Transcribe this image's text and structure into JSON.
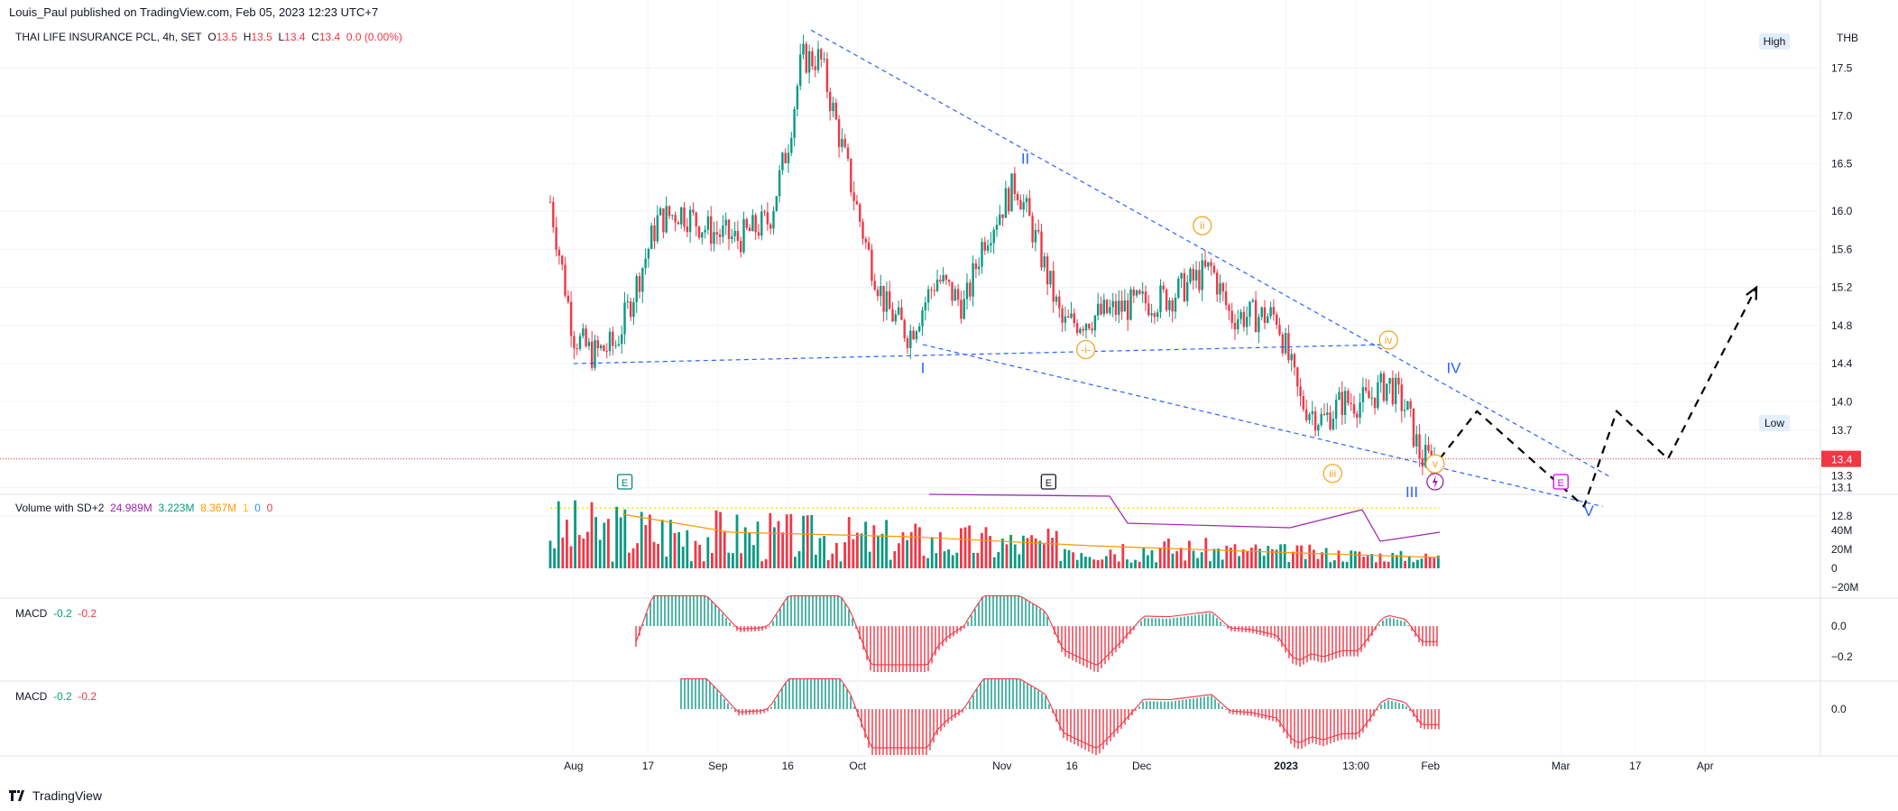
{
  "publisher": "Louis_Paul published on TradingView.com, Feb 05, 2023 12:23 UTC+7",
  "symbol": {
    "name": "THAI LIFE INSURANCE PCL, 4h, SET",
    "o_label": "O",
    "o": "13.5",
    "h_label": "H",
    "h": "13.5",
    "l_label": "L",
    "l": "13.4",
    "c_label": "C",
    "c": "13.4",
    "change": "0.0 (0.00%)"
  },
  "currency": "THB",
  "high_label": "High",
  "low_label": "Low",
  "last_price": "13.4",
  "low_price": "13.3",
  "footer_brand": "TradingView",
  "colors": {
    "up": "#089981",
    "down": "#f23645",
    "trend": "#2962ff",
    "wave": "#f5a623",
    "dashed": "#000000",
    "purple": "#9c27b0",
    "orange": "#ff9800"
  },
  "volume_pane": {
    "title": "Volume with SD+2",
    "v1": "24.989M",
    "v2": "3.223M",
    "v3": "8.367M",
    "v4": "1",
    "v5": "0",
    "v6": "0",
    "ticks": [
      "40M",
      "20M",
      "0",
      "−20M"
    ]
  },
  "macd1": {
    "title": "MACD",
    "v1": "-0.2",
    "v2": "-0.2",
    "ticks": [
      "0.0",
      "−0.2"
    ]
  },
  "macd2": {
    "title": "MACD",
    "v1": "-0.2",
    "v2": "-0.2",
    "ticks": [
      "0.0"
    ]
  },
  "chart_data": {
    "type": "candlestick",
    "title": "THAI LIFE INSURANCE PCL, 4h, SET",
    "y_axis": {
      "ticks": [
        17.5,
        17.0,
        16.5,
        16.0,
        15.6,
        15.2,
        14.8,
        14.4,
        14.0,
        13.7,
        13.4,
        13.1,
        12.8
      ],
      "range": [
        12.6,
        18.0
      ],
      "unit": "THB"
    },
    "x_axis": {
      "tick_labels": [
        "Aug",
        "17",
        "Sep",
        "16",
        "Oct",
        "Nov",
        "16",
        "Dec",
        "2023",
        "13:00",
        "Feb",
        "Mar",
        "17",
        "Apr"
      ]
    },
    "close_path": [
      [
        "2022-07-27",
        16.1
      ],
      [
        "2022-08-01",
        14.7
      ],
      [
        "2022-08-05",
        14.5
      ],
      [
        "2022-08-10",
        14.6
      ],
      [
        "2022-08-15",
        15.3
      ],
      [
        "2022-08-19",
        15.9
      ],
      [
        "2022-08-24",
        16.0
      ],
      [
        "2022-08-30",
        15.8
      ],
      [
        "2022-09-05",
        15.7
      ],
      [
        "2022-09-12",
        15.9
      ],
      [
        "2022-09-16",
        16.7
      ],
      [
        "2022-09-19",
        17.6
      ],
      [
        "2022-09-23",
        17.6
      ],
      [
        "2022-09-28",
        16.6
      ],
      [
        "2022-10-03",
        15.6
      ],
      [
        "2022-10-07",
        15.0
      ],
      [
        "2022-10-12",
        14.7
      ],
      [
        "2022-10-18",
        15.3
      ],
      [
        "2022-10-24",
        15.0
      ],
      [
        "2022-10-28",
        15.7
      ],
      [
        "2022-11-04",
        16.3
      ],
      [
        "2022-11-09",
        15.6
      ],
      [
        "2022-11-14",
        14.8
      ],
      [
        "2022-11-21",
        14.9
      ],
      [
        "2022-11-28",
        15.0
      ],
      [
        "2022-12-07",
        15.1
      ],
      [
        "2022-12-16",
        15.4
      ],
      [
        "2022-12-20",
        14.9
      ],
      [
        "2022-12-30",
        14.9
      ],
      [
        "2023-01-04",
        14.0
      ],
      [
        "2023-01-09",
        13.8
      ],
      [
        "2023-01-13",
        14.0
      ],
      [
        "2023-01-18",
        14.0
      ],
      [
        "2023-01-23",
        14.2
      ],
      [
        "2023-01-27",
        13.9
      ],
      [
        "2023-01-30",
        13.4
      ],
      [
        "2023-02-03",
        13.4
      ]
    ],
    "last_price": 13.4,
    "wave_labels": [
      {
        "label": "I",
        "date": "2022-10-15",
        "price": 14.3,
        "color": "blue"
      },
      {
        "label": "II",
        "date": "2022-11-06",
        "price": 16.5,
        "color": "blue"
      },
      {
        "label": "III",
        "date": "2023-01-28",
        "price": 13.0,
        "color": "blue"
      },
      {
        "label": "IV",
        "date": "2023-02-06",
        "price": 14.3,
        "color": "blue"
      },
      {
        "label": "V",
        "date": "2023-03-07",
        "price": 12.8,
        "color": "blue"
      },
      {
        "label": "ii",
        "date": "2022-12-14",
        "price": 15.8,
        "color": "orange"
      },
      {
        "label": "-i-",
        "date": "2022-11-19",
        "price": 14.5,
        "color": "orange"
      },
      {
        "label": "iii",
        "date": "2023-01-11",
        "price": 13.2,
        "color": "orange"
      },
      {
        "label": "iv",
        "date": "2023-01-23",
        "price": 14.6,
        "color": "orange"
      },
      {
        "label": "v",
        "date": "2023-02-02",
        "price": 13.3,
        "color": "orange"
      }
    ],
    "trendlines": [
      {
        "from": [
          "2022-09-21",
          17.9
        ],
        "to": [
          "2023-03-12",
          13.2
        ]
      },
      {
        "from": [
          "2022-08-01",
          14.4
        ],
        "to": [
          "2023-01-23",
          14.6
        ]
      },
      {
        "from": [
          "2022-10-15",
          14.6
        ],
        "to": [
          "2023-03-10",
          12.9
        ]
      }
    ],
    "projection": [
      [
        "2023-02-03",
        13.4
      ],
      [
        "2023-02-11",
        13.9
      ],
      [
        "2023-03-06",
        12.9
      ],
      [
        "2023-03-13",
        13.9
      ],
      [
        "2023-03-24",
        13.4
      ],
      [
        "2023-04-12",
        15.2
      ]
    ],
    "event_markers": [
      {
        "label": "E",
        "date": "2022-08-12",
        "color": "teal"
      },
      {
        "label": "E",
        "date": "2022-11-11",
        "color": "black"
      },
      {
        "label": "E",
        "date": "2023-03-01",
        "color": "magenta"
      }
    ]
  }
}
